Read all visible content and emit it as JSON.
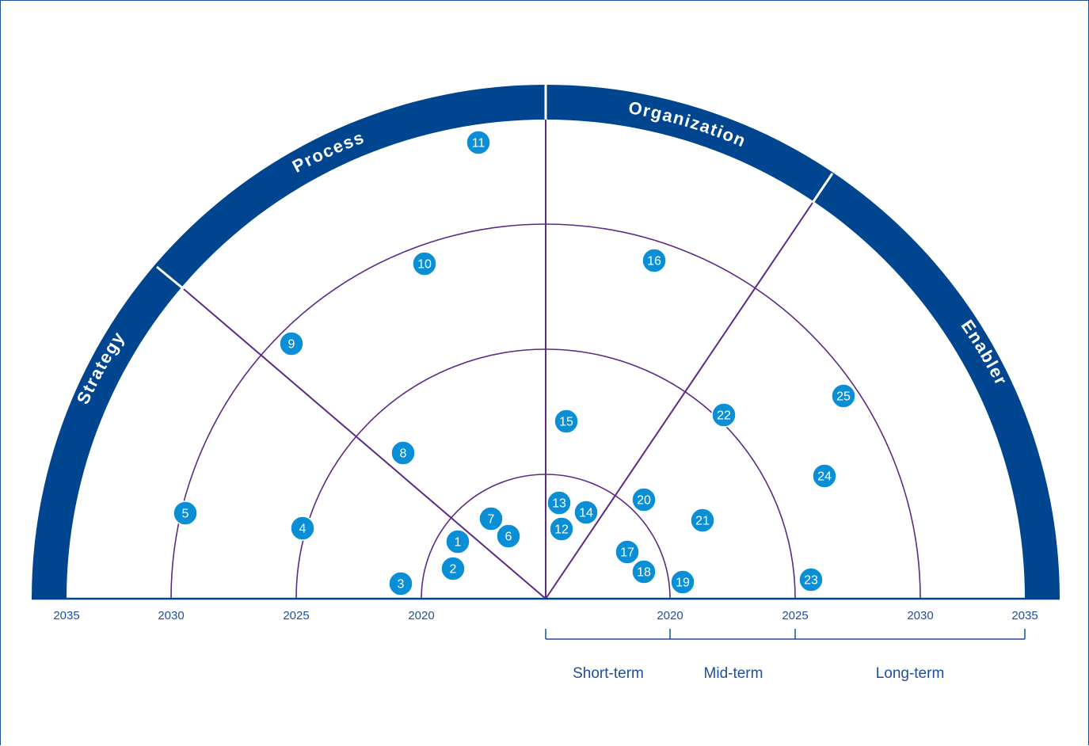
{
  "colors": {
    "band": "#00458f",
    "ring": "#5b2a86",
    "marker": "#0a8fd6",
    "marker_border": "#ffffff",
    "text": "#1f4e9a"
  },
  "segments": [
    {
      "label": "Strategy"
    },
    {
      "label": "Process"
    },
    {
      "label": "Organization"
    },
    {
      "label": "Enabler"
    }
  ],
  "axis": {
    "left_ticks": [
      "2035",
      "2030",
      "2025",
      "2020"
    ],
    "right_ticks": [
      "2020",
      "2025",
      "2030",
      "2035"
    ]
  },
  "terms": [
    {
      "label": "Short-term"
    },
    {
      "label": "Mid-term"
    },
    {
      "label": "Long-term"
    }
  ],
  "markers": [
    {
      "label": "1"
    },
    {
      "label": "2"
    },
    {
      "label": "3"
    },
    {
      "label": "4"
    },
    {
      "label": "5"
    },
    {
      "label": "6"
    },
    {
      "label": "7"
    },
    {
      "label": "8"
    },
    {
      "label": "9"
    },
    {
      "label": "10"
    },
    {
      "label": "11"
    },
    {
      "label": "12"
    },
    {
      "label": "13"
    },
    {
      "label": "14"
    },
    {
      "label": "15"
    },
    {
      "label": "16"
    },
    {
      "label": "17"
    },
    {
      "label": "18"
    },
    {
      "label": "19"
    },
    {
      "label": "20"
    },
    {
      "label": "21"
    },
    {
      "label": "22"
    },
    {
      "label": "23"
    },
    {
      "label": "24"
    },
    {
      "label": "25"
    }
  ]
}
